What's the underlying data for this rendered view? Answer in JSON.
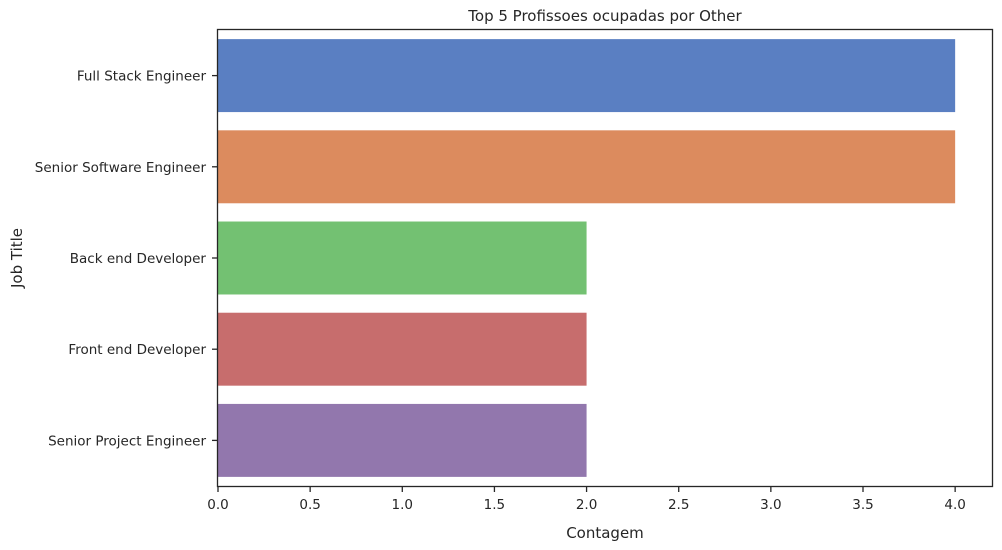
{
  "chart_data": {
    "type": "bar",
    "orientation": "horizontal",
    "title": "Top 5 Profissoes ocupadas por Other",
    "xlabel": "Contagem",
    "ylabel": "Job Title",
    "categories": [
      "Full Stack Engineer",
      "Senior Software Engineer",
      "Back end Developer",
      "Front end Developer",
      "Senior Project Engineer"
    ],
    "values": [
      4,
      4,
      2,
      2,
      2
    ],
    "colors": [
      "#5a7fc2",
      "#dc8b5e",
      "#73c172",
      "#c76d6d",
      "#9277ad"
    ],
    "xlim": [
      0,
      4.2
    ],
    "xticks": [
      "0.0",
      "0.5",
      "1.0",
      "1.5",
      "2.0",
      "2.5",
      "3.0",
      "3.5",
      "4.0"
    ],
    "grid": false
  }
}
